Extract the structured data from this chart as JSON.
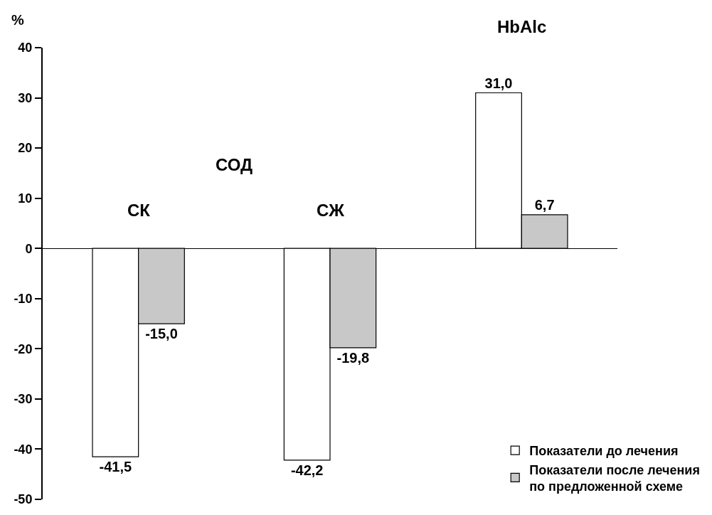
{
  "chart_data": {
    "type": "bar",
    "ylabel": "%",
    "categories": [
      "СК",
      "СЖ",
      "HbAlc"
    ],
    "series": [
      {
        "name": "Показатели до лечения",
        "color": "#ffffff",
        "values": [
          -41.5,
          -42.2,
          31.0
        ],
        "value_labels": [
          "-41,5",
          "-42,2",
          "31,0"
        ]
      },
      {
        "name": "Показатели после лечения по предложенной схеме",
        "color": "#c8c8c8",
        "values": [
          -15.0,
          -19.8,
          6.7
        ],
        "value_labels": [
          "-15,0",
          "-19,8",
          "6,7"
        ]
      }
    ],
    "ylim": [
      -50,
      40
    ],
    "yticks": [
      -50,
      -40,
      -30,
      -20,
      -10,
      0,
      10,
      20,
      30,
      40
    ],
    "annotations": [
      "СОД"
    ],
    "grid": false,
    "legend": "bottom right"
  }
}
